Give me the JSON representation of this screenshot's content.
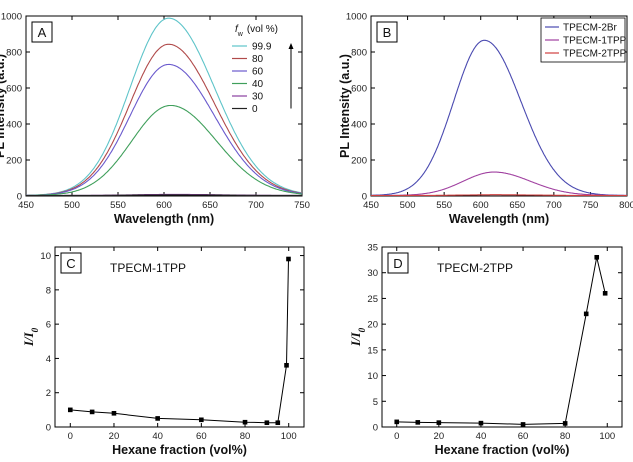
{
  "chart_data": [
    {
      "panel": "A",
      "type": "line",
      "xlabel": "Wavelength (nm)",
      "ylabel": "PL Intensity (a.u.)",
      "xlim": [
        450,
        750
      ],
      "ylim": [
        0,
        1000
      ],
      "xticks": [
        450,
        500,
        550,
        600,
        650,
        700,
        750
      ],
      "yticks": [
        0,
        200,
        400,
        600,
        800,
        1000
      ],
      "legend_title_sym": "f",
      "legend_title_sub": "w",
      "legend_title_rest": "(vol %)",
      "legend_placement": "top-right",
      "series": [
        {
          "name": "99.9",
          "color": "#5ec4c9",
          "peak": 985,
          "center": 605
        },
        {
          "name": "80",
          "color": "#b04a4a",
          "peak": 840,
          "center": 605
        },
        {
          "name": "60",
          "color": "#6a5acd",
          "peak": 728,
          "center": 605
        },
        {
          "name": "40",
          "color": "#3f9f5b",
          "peak": 500,
          "center": 607
        },
        {
          "name": "30",
          "color": "#8a3fa0",
          "peak": 6,
          "center": 610
        },
        {
          "name": "0",
          "color": "#222222",
          "peak": 3,
          "center": 610
        }
      ]
    },
    {
      "panel": "B",
      "type": "line",
      "xlabel": "Wavelength (nm)",
      "ylabel": "PL Intensity (a.u.)",
      "xlim": [
        450,
        800
      ],
      "ylim": [
        0,
        1000
      ],
      "xticks": [
        450,
        500,
        550,
        600,
        650,
        700,
        750,
        800
      ],
      "yticks": [
        0,
        200,
        400,
        600,
        800,
        1000
      ],
      "legend_placement": "top-right",
      "series": [
        {
          "name": "TPECM-2Br",
          "color": "#4a4ab0",
          "peak": 862,
          "center": 605
        },
        {
          "name": "TPECM-1TPP",
          "color": "#a040a0",
          "peak": 130,
          "center": 618
        },
        {
          "name": "TPECM-2TPP",
          "color": "#d04040",
          "peak": 4,
          "center": 620
        }
      ]
    },
    {
      "panel": "C",
      "type": "line",
      "title": "TPECM-1TPP",
      "xlabel": "Hexane fraction (vol%)",
      "ylabel_main": "I/I",
      "ylabel_sub": "0",
      "xlim": [
        -7,
        107
      ],
      "ylim": [
        0,
        10.5
      ],
      "xticks": [
        0,
        20,
        40,
        60,
        80,
        100
      ],
      "yticks": [
        0,
        2,
        4,
        6,
        8,
        10
      ],
      "x": [
        0,
        10,
        20,
        40,
        60,
        80,
        90,
        95,
        99,
        99.9
      ],
      "values": [
        1.0,
        0.88,
        0.8,
        0.5,
        0.42,
        0.28,
        0.25,
        0.25,
        3.6,
        9.8
      ]
    },
    {
      "panel": "D",
      "type": "line",
      "title": "TPECM-2TPP",
      "xlabel": "Hexane fraction (vol%)",
      "ylabel_main": "I/I",
      "ylabel_sub": "0",
      "xlim": [
        -7,
        107
      ],
      "ylim": [
        0,
        35
      ],
      "xticks": [
        0,
        20,
        40,
        60,
        80,
        100
      ],
      "yticks": [
        0,
        5,
        10,
        15,
        20,
        25,
        30,
        35
      ],
      "x": [
        0,
        10,
        20,
        40,
        60,
        80,
        90,
        95,
        99
      ],
      "values": [
        1.0,
        0.9,
        0.85,
        0.75,
        0.5,
        0.7,
        22.0,
        33.0,
        26.0
      ]
    }
  ]
}
